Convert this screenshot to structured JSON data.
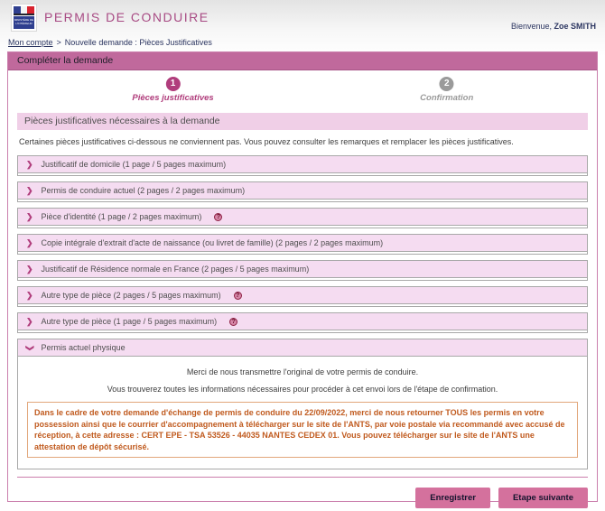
{
  "header": {
    "title": "PERMIS DE CONDUIRE",
    "welcome_prefix": "Bienvenue, ",
    "user_name": "Zoe SMITH",
    "ministere_label": "MINISTÈRE DE L'INTÉRIEUR"
  },
  "breadcrumb": {
    "link": "Mon compte",
    "separator": ">",
    "current": "Nouvelle demande : Pièces Justificatives"
  },
  "panel": {
    "title": "Compléter la demande"
  },
  "steps": [
    {
      "number": "1",
      "label": "Pièces justificatives"
    },
    {
      "number": "2",
      "label": "Confirmation"
    }
  ],
  "section": {
    "title": "Pièces justificatives nécessaires à la demande",
    "intro": "Certaines pièces justificatives ci-dessous ne conviennent pas. Vous pouvez consulter les remarques et remplacer les pièces justificatives."
  },
  "icons": {
    "chevron_right": "❯",
    "chevron_down": "❯",
    "help": "?"
  },
  "accordions": [
    {
      "label": "Justificatif de domicile (1 page / 5 pages maximum)"
    },
    {
      "label": "Permis de conduire actuel (2 pages / 2 pages maximum)"
    },
    {
      "label": "Pièce d'identité (1 page / 2 pages maximum)"
    },
    {
      "label": "Copie intégrale d'extrait d'acte de naissance (ou livret de famille) (2 pages / 2 pages maximum)"
    },
    {
      "label": "Justificatif de Résidence normale en France (2 pages / 5 pages maximum)"
    },
    {
      "label": "Autre type de pièce (2 pages / 5 pages maximum)"
    },
    {
      "label": "Autre type de pièce (1 page / 5 pages maximum)"
    }
  ],
  "expanded": {
    "label": "Permis actuel physique",
    "line1": "Merci de nous transmettre l'original de votre permis de conduire.",
    "line2": "Vous trouverez toutes les informations nécessaires pour procéder à cet envoi lors de l'étape de confirmation.",
    "notice": "Dans le cadre de votre demande d'échange de permis de conduire du 22/09/2022, merci de nous retourner TOUS les permis en votre possession ainsi que le courrier d'accompagnement à télécharger sur le site de l'ANTS, par voie postale via recommandé avec accusé de réception, à cette adresse : CERT EPE - TSA 53526 - 44035 NANTES CEDEX 01. Vous pouvez télécharger sur le site de l'ANTS une attestation de dépôt sécurisé."
  },
  "buttons": {
    "save": "Enregistrer",
    "next": "Etape suivante"
  },
  "colors": {
    "primary_magenta": "#b03d7c",
    "banner_pink": "#c0699c",
    "accordion_pink": "#f5dcf1",
    "section_pink": "#f0cfe7",
    "notice_orange": "#c05a1e",
    "button_pink": "#d4719d",
    "navy_text": "#2b3560"
  }
}
